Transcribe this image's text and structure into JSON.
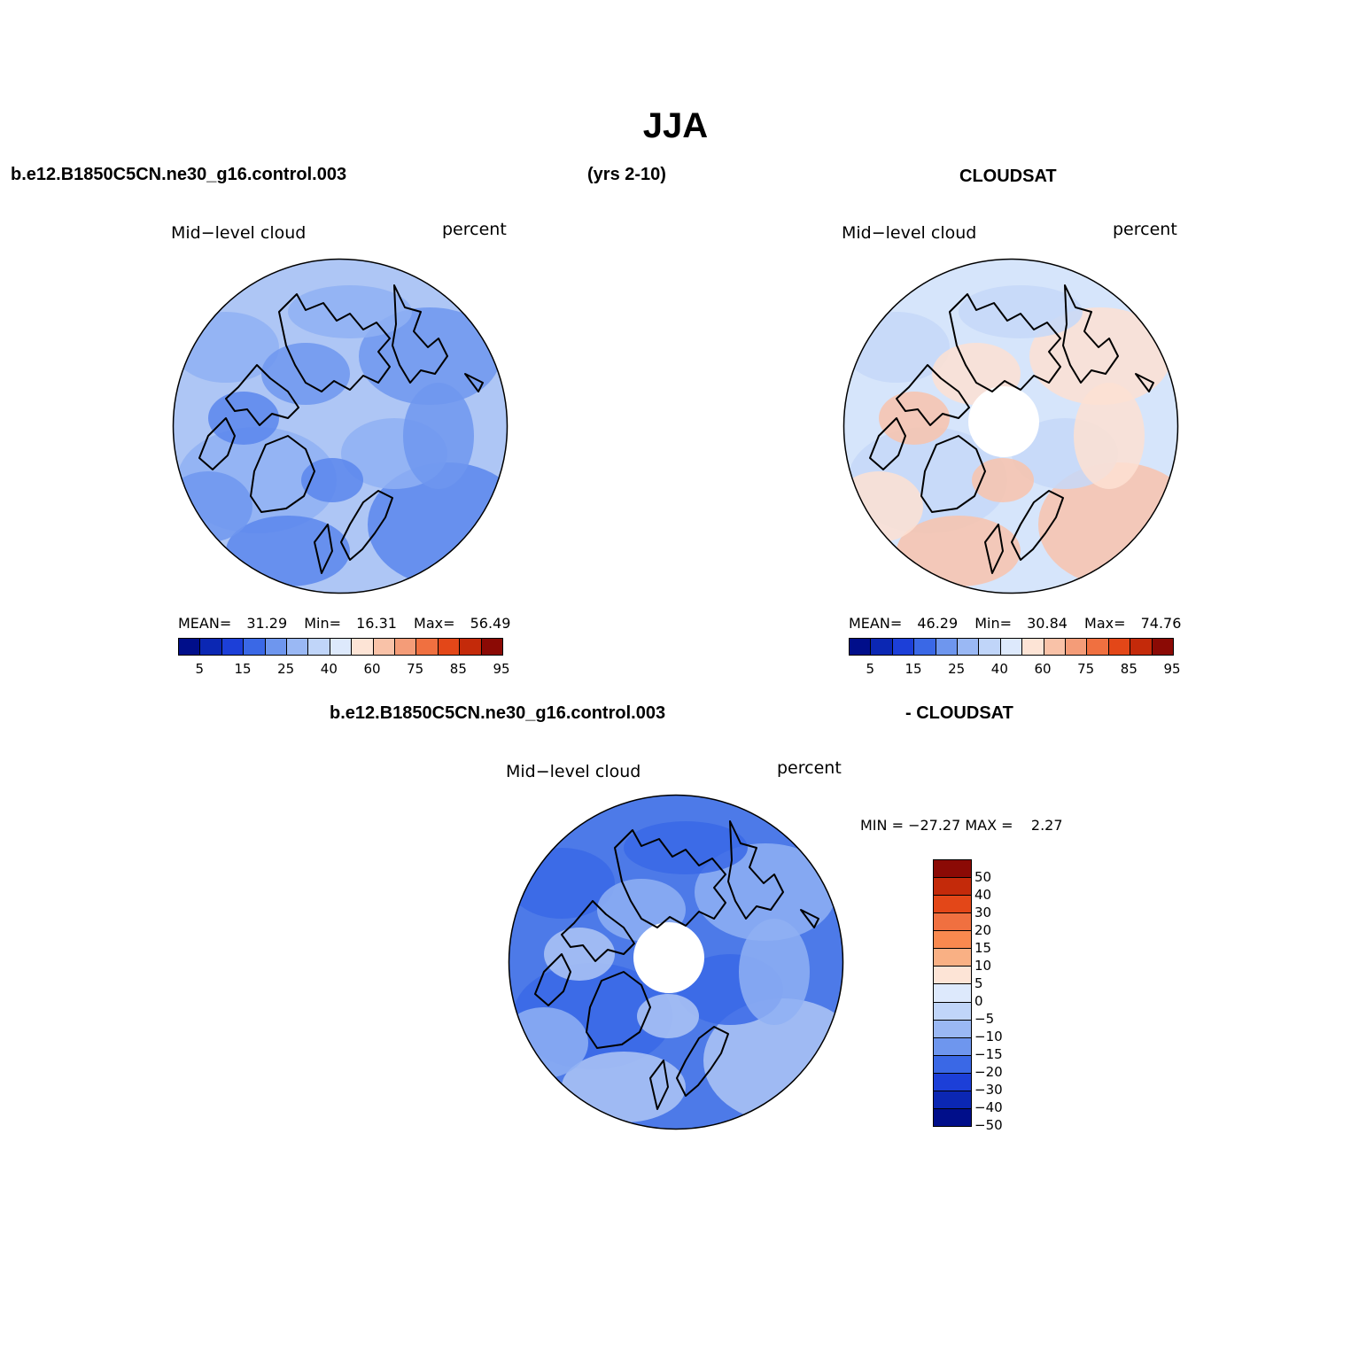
{
  "title": "JJA",
  "top_left_case": "b.e12.B1850C5CN.ne30_g16.control.003",
  "years": "(yrs 2-10)",
  "top_right_case": "CLOUDSAT",
  "diff_case_left": "b.e12.B1850C5CN.ne30_g16.control.003",
  "diff_case_right": "- CLOUDSAT",
  "panels": {
    "model": {
      "variable": "Mid−level cloud",
      "units": "percent",
      "mean_label": "MEAN=",
      "mean": "31.29",
      "min_label": "Min=",
      "min": "16.31",
      "max_label": "Max=",
      "max": "56.49",
      "colors": [
        "#aec6f5",
        "#8fb0f3",
        "#6e96ee",
        "#5a86ec"
      ]
    },
    "obs": {
      "variable": "Mid−level cloud",
      "units": "percent",
      "mean_label": "MEAN=",
      "mean": "46.29",
      "min_label": "Min=",
      "min": "30.84",
      "max_label": "Max=",
      "max": "74.76",
      "colors": [
        "#d6e5fb",
        "#c5d8f8",
        "#fde0d2",
        "#f8c3ad"
      ]
    },
    "diff": {
      "variable": "Mid−level cloud",
      "units": "percent",
      "minmax_text": "MIN = −27.27 MAX =    2.27",
      "colors": [
        "#4d7ae8",
        "#3a68e6",
        "#8fb0f3",
        "#aec6f5"
      ]
    }
  },
  "abs_colorbar": {
    "colors": [
      "#000e8a",
      "#0b27b3",
      "#1c3fd8",
      "#3a68e6",
      "#6e96ee",
      "#9ab8f4",
      "#c0d5f9",
      "#dde9fc",
      "#fde4d6",
      "#f9c2a8",
      "#f49c78",
      "#f07040",
      "#e34718",
      "#c42a0a",
      "#8b0a05"
    ],
    "labels": [
      "5",
      "15",
      "25",
      "40",
      "60",
      "75",
      "85",
      "95"
    ]
  },
  "diff_colorbar": {
    "colors": [
      "#8b0a05",
      "#c42a0a",
      "#e34718",
      "#f07040",
      "#f9894f",
      "#f9b084",
      "#fde4d6",
      "#dde9fc",
      "#c0d5f9",
      "#9ab8f4",
      "#6e96ee",
      "#3a68e6",
      "#1c3fd8",
      "#0b27b3",
      "#000e8a"
    ],
    "labels": [
      "50",
      "40",
      "30",
      "20",
      "15",
      "10",
      "5",
      "0",
      "−5",
      "−10",
      "−15",
      "−20",
      "−30",
      "−40",
      "−50"
    ]
  }
}
